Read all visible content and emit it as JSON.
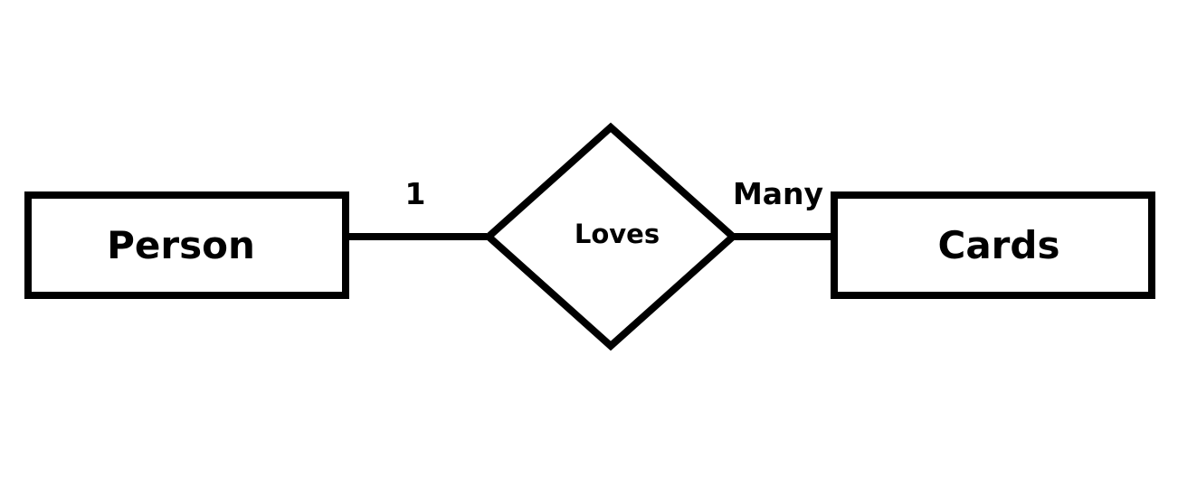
{
  "diagram": {
    "entities": [
      {
        "name": "Person"
      },
      {
        "name": "Cards"
      }
    ],
    "relationship": {
      "name": "Loves"
    },
    "cardinalities": {
      "left": "1",
      "right": "Many"
    }
  },
  "colors": {
    "stroke": "#000000",
    "background": "#ffffff"
  }
}
